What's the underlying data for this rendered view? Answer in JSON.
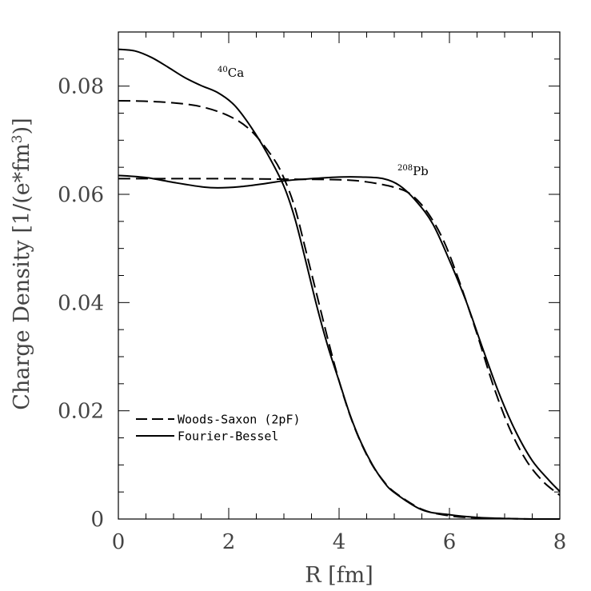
{
  "chart_data": {
    "type": "line",
    "xlabel": "R [fm]",
    "ylabel": "Charge Density [1/(e*fm3)]",
    "xlim": [
      0,
      8
    ],
    "ylim": [
      0,
      0.09
    ],
    "x_ticks": [
      "0",
      "2",
      "4",
      "6",
      "8"
    ],
    "y_ticks": [
      "0",
      "0.02",
      "0.04",
      "0.06",
      "0.08"
    ],
    "grid": false,
    "legend_position": "bottom-left",
    "legend": [
      {
        "label": "Woods-Saxon (2pF)",
        "style": "dashed"
      },
      {
        "label": "Fourier-Bessel",
        "style": "solid"
      }
    ],
    "annotations": [
      {
        "sup": "40",
        "text": "Ca",
        "x": 1.8,
        "y": 0.082
      },
      {
        "sup": "208",
        "text": "Pb",
        "x": 5.1,
        "y": 0.063
      }
    ],
    "series": [
      {
        "name": "Woods-Saxon (2pF)",
        "nucleus": "Ca",
        "style": "dashed",
        "x": [
          0,
          0.5,
          1.0,
          1.5,
          2.0,
          2.4,
          2.8,
          3.0,
          3.2,
          3.4,
          3.6,
          3.8,
          4.0,
          4.2,
          4.4,
          4.6,
          4.8,
          5.0,
          5.5,
          6.0,
          6.5,
          7.0,
          7.5,
          8.0
        ],
        "y": [
          0.0773,
          0.0772,
          0.0769,
          0.0762,
          0.0745,
          0.0718,
          0.0668,
          0.063,
          0.0575,
          0.0495,
          0.0413,
          0.0331,
          0.0255,
          0.0191,
          0.014,
          0.01,
          0.0071,
          0.005,
          0.0018,
          0.0006,
          0.0002,
          0.0001,
          0.0,
          0.0
        ]
      },
      {
        "name": "Fourier-Bessel",
        "nucleus": "Ca",
        "style": "solid",
        "x": [
          0,
          0.3,
          0.6,
          0.9,
          1.2,
          1.5,
          1.8,
          2.1,
          2.4,
          2.7,
          3.0,
          3.2,
          3.4,
          3.6,
          3.8,
          4.0,
          4.2,
          4.4,
          4.6,
          4.8,
          5.0,
          5.5,
          6.0,
          6.5,
          7.0,
          7.5,
          8.0
        ],
        "y": [
          0.0868,
          0.0865,
          0.0853,
          0.0835,
          0.0816,
          0.0801,
          0.0788,
          0.0765,
          0.0725,
          0.0675,
          0.0615,
          0.0555,
          0.0475,
          0.0392,
          0.0318,
          0.0255,
          0.0192,
          0.0141,
          0.0101,
          0.007,
          0.0049,
          0.0017,
          0.0008,
          0.0003,
          0.0001,
          0.0,
          0.0
        ]
      },
      {
        "name": "Woods-Saxon (2pF)",
        "nucleus": "Pb",
        "style": "dashed",
        "x": [
          0,
          1.0,
          2.0,
          3.0,
          4.0,
          4.5,
          5.0,
          5.3,
          5.6,
          5.9,
          6.2,
          6.5,
          6.8,
          7.1,
          7.4,
          7.7,
          8.0
        ],
        "y": [
          0.0629,
          0.0629,
          0.0629,
          0.0628,
          0.0627,
          0.0623,
          0.0613,
          0.06,
          0.0567,
          0.0513,
          0.0433,
          0.0342,
          0.0245,
          0.0165,
          0.0107,
          0.0069,
          0.0044
        ]
      },
      {
        "name": "Fourier-Bessel",
        "nucleus": "Pb",
        "style": "solid",
        "x": [
          0,
          0.5,
          1.0,
          1.5,
          1.8,
          2.2,
          2.6,
          3.0,
          3.5,
          4.0,
          4.4,
          4.8,
          5.1,
          5.4,
          5.7,
          6.0,
          6.3,
          6.6,
          6.9,
          7.2,
          7.5,
          7.8,
          8.0
        ],
        "y": [
          0.0635,
          0.0631,
          0.0622,
          0.0614,
          0.0612,
          0.0614,
          0.0619,
          0.0625,
          0.0629,
          0.0632,
          0.0632,
          0.0629,
          0.0616,
          0.0587,
          0.0545,
          0.0478,
          0.0403,
          0.0316,
          0.0232,
          0.0162,
          0.0108,
          0.0072,
          0.0051
        ]
      }
    ]
  }
}
